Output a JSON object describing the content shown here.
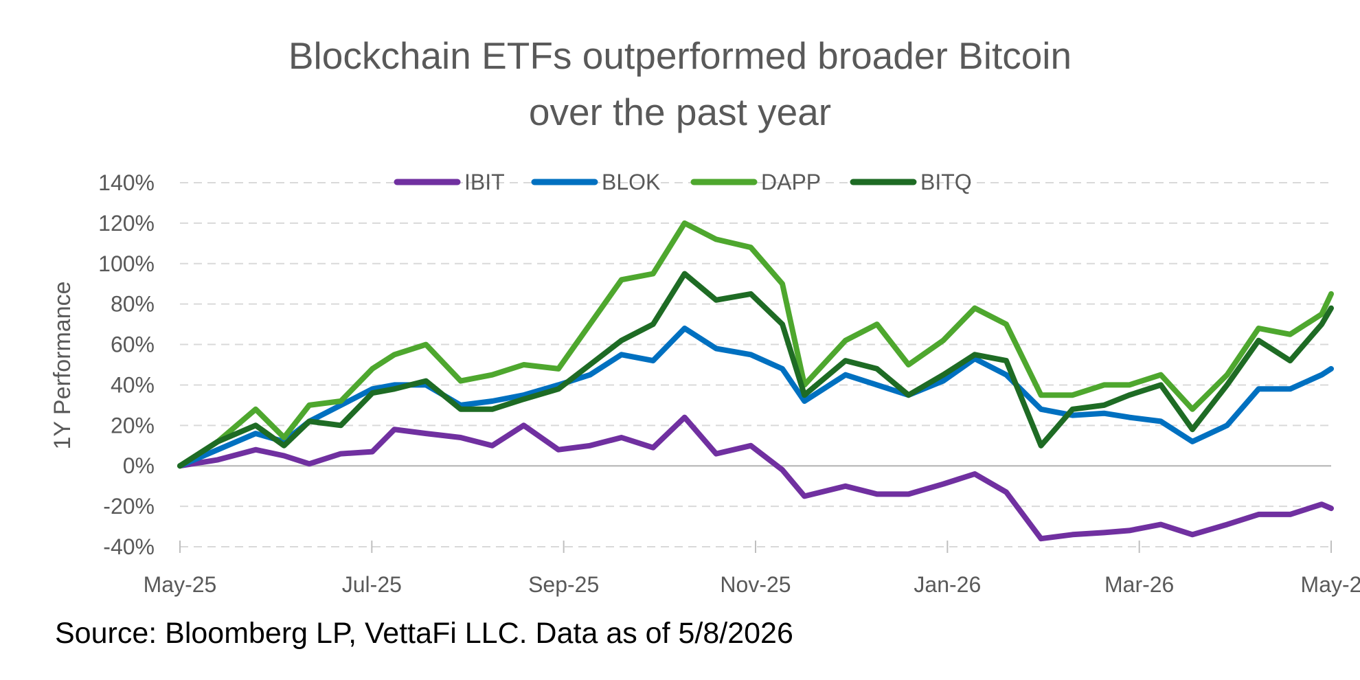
{
  "chart_data": {
    "type": "line",
    "title_lines": [
      "Blockchain ETFs outperformed broader Bitcoin",
      "over the past year"
    ],
    "ylabel": "1Y Performance",
    "source": "Source: Bloomberg LP, VettaFi LLC. Data as of 5/8/2026",
    "x_ticks": [
      "May-25",
      "Jul-25",
      "Sep-25",
      "Nov-25",
      "Jan-26",
      "Mar-26",
      "May-2"
    ],
    "x_range": [
      "2025-05-08",
      "2026-05-08"
    ],
    "y_ticks": [
      "140%",
      "120%",
      "100%",
      "80%",
      "60%",
      "40%",
      "20%",
      "0%",
      "-20%",
      "-40%"
    ],
    "ylim": [
      -40,
      140
    ],
    "grid": true,
    "legend_position": "top",
    "series": [
      {
        "name": "IBIT",
        "color": "#7030A0",
        "points": [
          [
            "2025-05-08",
            0
          ],
          [
            "2025-05-20",
            3
          ],
          [
            "2025-06-01",
            8
          ],
          [
            "2025-06-10",
            5
          ],
          [
            "2025-06-18",
            1
          ],
          [
            "2025-06-28",
            6
          ],
          [
            "2025-07-08",
            7
          ],
          [
            "2025-07-15",
            18
          ],
          [
            "2025-07-25",
            16
          ],
          [
            "2025-08-05",
            14
          ],
          [
            "2025-08-15",
            10
          ],
          [
            "2025-08-25",
            20
          ],
          [
            "2025-09-05",
            8
          ],
          [
            "2025-09-15",
            10
          ],
          [
            "2025-09-25",
            14
          ],
          [
            "2025-10-05",
            9
          ],
          [
            "2025-10-15",
            24
          ],
          [
            "2025-10-25",
            6
          ],
          [
            "2025-11-05",
            10
          ],
          [
            "2025-11-15",
            -2
          ],
          [
            "2025-11-22",
            -15
          ],
          [
            "2025-12-05",
            -10
          ],
          [
            "2025-12-15",
            -14
          ],
          [
            "2025-12-25",
            -14
          ],
          [
            "2026-01-05",
            -9
          ],
          [
            "2026-01-15",
            -4
          ],
          [
            "2026-01-25",
            -13
          ],
          [
            "2026-02-05",
            -36
          ],
          [
            "2026-02-15",
            -34
          ],
          [
            "2026-02-25",
            -33
          ],
          [
            "2026-03-05",
            -32
          ],
          [
            "2026-03-15",
            -29
          ],
          [
            "2026-03-25",
            -34
          ],
          [
            "2026-04-05",
            -29
          ],
          [
            "2026-04-15",
            -24
          ],
          [
            "2026-04-25",
            -24
          ],
          [
            "2026-05-05",
            -19
          ],
          [
            "2026-05-08",
            -21
          ]
        ]
      },
      {
        "name": "BLOK",
        "color": "#0070C0",
        "points": [
          [
            "2025-05-08",
            0
          ],
          [
            "2025-05-20",
            8
          ],
          [
            "2025-06-01",
            16
          ],
          [
            "2025-06-10",
            12
          ],
          [
            "2025-06-18",
            22
          ],
          [
            "2025-06-28",
            30
          ],
          [
            "2025-07-08",
            38
          ],
          [
            "2025-07-15",
            40
          ],
          [
            "2025-07-25",
            40
          ],
          [
            "2025-08-05",
            30
          ],
          [
            "2025-08-15",
            32
          ],
          [
            "2025-08-25",
            35
          ],
          [
            "2025-09-05",
            40
          ],
          [
            "2025-09-15",
            45
          ],
          [
            "2025-09-25",
            55
          ],
          [
            "2025-10-05",
            52
          ],
          [
            "2025-10-15",
            68
          ],
          [
            "2025-10-25",
            58
          ],
          [
            "2025-11-05",
            55
          ],
          [
            "2025-11-15",
            48
          ],
          [
            "2025-11-22",
            32
          ],
          [
            "2025-12-05",
            45
          ],
          [
            "2025-12-15",
            40
          ],
          [
            "2025-12-25",
            35
          ],
          [
            "2026-01-05",
            42
          ],
          [
            "2026-01-15",
            53
          ],
          [
            "2026-01-25",
            45
          ],
          [
            "2026-02-05",
            28
          ],
          [
            "2026-02-15",
            25
          ],
          [
            "2026-02-25",
            26
          ],
          [
            "2026-03-05",
            24
          ],
          [
            "2026-03-15",
            22
          ],
          [
            "2026-03-25",
            12
          ],
          [
            "2026-04-05",
            20
          ],
          [
            "2026-04-15",
            38
          ],
          [
            "2026-04-25",
            38
          ],
          [
            "2026-05-05",
            45
          ],
          [
            "2026-05-08",
            48
          ]
        ]
      },
      {
        "name": "DAPP",
        "color": "#4EA72E",
        "points": [
          [
            "2025-05-08",
            0
          ],
          [
            "2025-05-20",
            12
          ],
          [
            "2025-06-01",
            28
          ],
          [
            "2025-06-10",
            14
          ],
          [
            "2025-06-18",
            30
          ],
          [
            "2025-06-28",
            32
          ],
          [
            "2025-07-08",
            48
          ],
          [
            "2025-07-15",
            55
          ],
          [
            "2025-07-25",
            60
          ],
          [
            "2025-08-05",
            42
          ],
          [
            "2025-08-15",
            45
          ],
          [
            "2025-08-25",
            50
          ],
          [
            "2025-09-05",
            48
          ],
          [
            "2025-09-15",
            70
          ],
          [
            "2025-09-25",
            92
          ],
          [
            "2025-10-05",
            95
          ],
          [
            "2025-10-15",
            120
          ],
          [
            "2025-10-25",
            112
          ],
          [
            "2025-11-05",
            108
          ],
          [
            "2025-11-15",
            90
          ],
          [
            "2025-11-22",
            40
          ],
          [
            "2025-12-05",
            62
          ],
          [
            "2025-12-15",
            70
          ],
          [
            "2025-12-25",
            50
          ],
          [
            "2026-01-05",
            62
          ],
          [
            "2026-01-15",
            78
          ],
          [
            "2026-01-25",
            70
          ],
          [
            "2026-02-05",
            35
          ],
          [
            "2026-02-15",
            35
          ],
          [
            "2026-02-25",
            40
          ],
          [
            "2026-03-05",
            40
          ],
          [
            "2026-03-15",
            45
          ],
          [
            "2026-03-25",
            28
          ],
          [
            "2026-04-05",
            45
          ],
          [
            "2026-04-15",
            68
          ],
          [
            "2026-04-25",
            65
          ],
          [
            "2026-05-05",
            75
          ],
          [
            "2026-05-08",
            85
          ]
        ]
      },
      {
        "name": "BITQ",
        "color": "#1E6B24",
        "points": [
          [
            "2025-05-08",
            0
          ],
          [
            "2025-05-20",
            12
          ],
          [
            "2025-06-01",
            20
          ],
          [
            "2025-06-10",
            10
          ],
          [
            "2025-06-18",
            22
          ],
          [
            "2025-06-28",
            20
          ],
          [
            "2025-07-08",
            36
          ],
          [
            "2025-07-15",
            38
          ],
          [
            "2025-07-25",
            42
          ],
          [
            "2025-08-05",
            28
          ],
          [
            "2025-08-15",
            28
          ],
          [
            "2025-08-25",
            33
          ],
          [
            "2025-09-05",
            38
          ],
          [
            "2025-09-15",
            50
          ],
          [
            "2025-09-25",
            62
          ],
          [
            "2025-10-05",
            70
          ],
          [
            "2025-10-15",
            95
          ],
          [
            "2025-10-25",
            82
          ],
          [
            "2025-11-05",
            85
          ],
          [
            "2025-11-15",
            70
          ],
          [
            "2025-11-22",
            35
          ],
          [
            "2025-12-05",
            52
          ],
          [
            "2025-12-15",
            48
          ],
          [
            "2025-12-25",
            35
          ],
          [
            "2026-01-05",
            45
          ],
          [
            "2026-01-15",
            55
          ],
          [
            "2026-01-25",
            52
          ],
          [
            "2026-02-05",
            10
          ],
          [
            "2026-02-15",
            28
          ],
          [
            "2026-02-25",
            30
          ],
          [
            "2026-03-05",
            35
          ],
          [
            "2026-03-15",
            40
          ],
          [
            "2026-03-25",
            18
          ],
          [
            "2026-04-05",
            40
          ],
          [
            "2026-04-15",
            62
          ],
          [
            "2026-04-25",
            52
          ],
          [
            "2026-05-05",
            70
          ],
          [
            "2026-05-08",
            78
          ]
        ]
      }
    ]
  }
}
